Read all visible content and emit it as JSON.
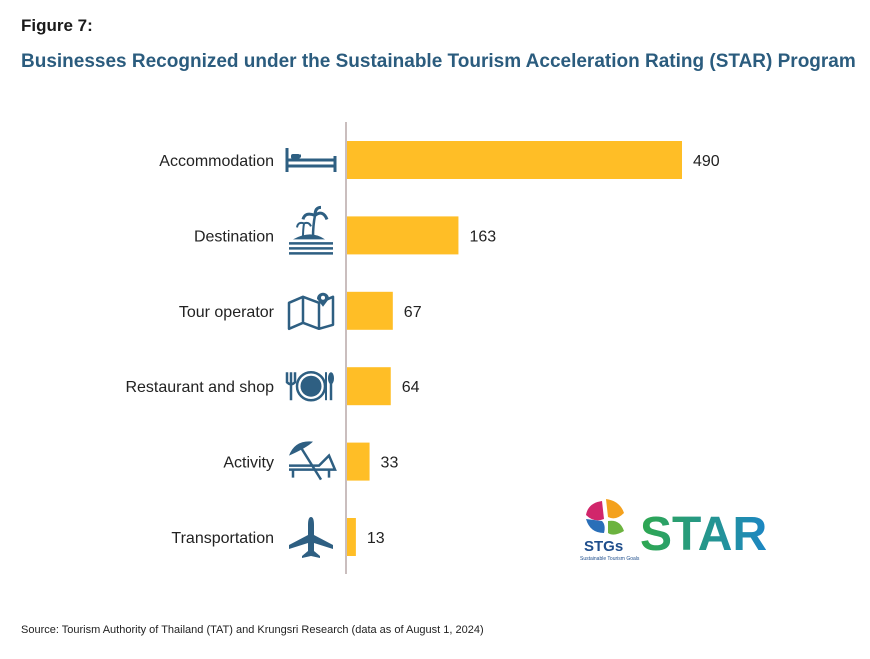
{
  "figure_label": "Figure 7:",
  "chart_data": {
    "type": "bar",
    "orientation": "horizontal",
    "title": "Businesses Recognized under the Sustainable Tourism Acceleration Rating (STAR) Program",
    "categories": [
      "Accommodation",
      "Destination",
      "Tour operator",
      "Restaurant and shop",
      "Activity",
      "Transportation"
    ],
    "icons": [
      "bed-icon",
      "island-icon",
      "map-pin-icon",
      "dining-icon",
      "beach-umbrella-icon",
      "airplane-icon"
    ],
    "values": [
      490,
      163,
      67,
      64,
      33,
      13
    ],
    "xlim": [
      0,
      490
    ],
    "bar_color": "#FFBE26",
    "icon_color": "#2E5F82",
    "grid": false
  },
  "logo": {
    "left_text": "STGs",
    "left_subtext": "Sustainable Tourism Goals",
    "right_text": "STAR"
  },
  "source": "Source: Tourism Authority of Thailand (TAT) and Krungsri Research (data as of August 1, 2024)"
}
